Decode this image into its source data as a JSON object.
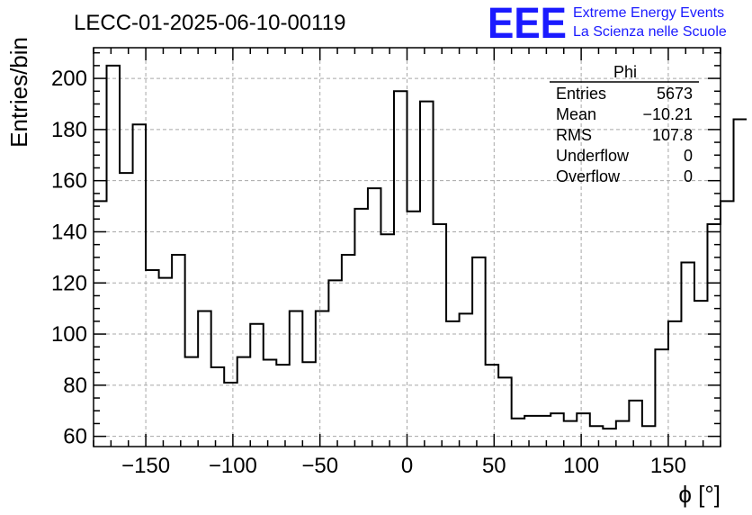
{
  "header": {
    "run_title": "LECC-01-2025-06-10-00119",
    "logo_text": "EEE",
    "logo_line1": "Extreme Energy Events",
    "logo_line2": "La Scienza nelle Scuole"
  },
  "stats_box": {
    "title": "Phi",
    "rows": [
      {
        "label": "Entries",
        "value": "5673"
      },
      {
        "label": "Mean",
        "value": "−10.21"
      },
      {
        "label": "RMS",
        "value": "107.8"
      },
      {
        "label": "Underflow",
        "value": "0"
      },
      {
        "label": "Overflow",
        "value": "0"
      }
    ]
  },
  "chart_data": {
    "type": "histogram",
    "xlabel": "ϕ [°]",
    "ylabel": "Entries/bin",
    "xlim": [
      -180,
      180
    ],
    "ylim": [
      56,
      212
    ],
    "grid": true,
    "x_ticks": [
      -150,
      -100,
      -50,
      0,
      50,
      100,
      150
    ],
    "x_tick_labels": [
      "−150",
      "−100",
      "−50",
      "0",
      "50",
      "100",
      "150"
    ],
    "y_ticks": [
      60,
      80,
      100,
      120,
      140,
      160,
      180,
      200
    ],
    "y_tick_labels": [
      "60",
      "80",
      "100",
      "120",
      "140",
      "160",
      "180",
      "200"
    ],
    "bin_width": 7.5,
    "bin_edges_start": -180,
    "values": [
      152,
      205,
      163,
      182,
      125,
      122,
      131,
      91,
      109,
      87,
      81,
      91,
      104,
      90,
      88,
      109,
      89,
      109,
      121,
      131,
      149,
      157,
      139,
      195,
      148,
      191,
      143,
      105,
      108,
      130,
      88,
      83,
      67,
      68,
      68,
      69,
      66,
      69,
      64,
      63,
      66,
      74,
      64,
      94,
      105,
      128,
      113,
      143,
      152,
      184
    ]
  }
}
